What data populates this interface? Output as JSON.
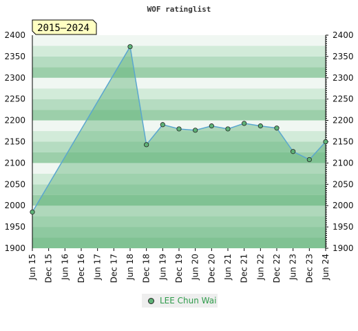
{
  "chart_data": {
    "type": "area",
    "title": "WOF ratinglist",
    "range_label": "2015–2024",
    "xlabel": "",
    "ylabel": "",
    "ylim": [
      1900,
      2400
    ],
    "yticks": [
      1900,
      1950,
      2000,
      2050,
      2100,
      2150,
      2200,
      2250,
      2300,
      2350,
      2400
    ],
    "x_tick_labels": [
      "Jun 15",
      "Dec 15",
      "Jun 16",
      "Dec 16",
      "Jun 17",
      "Dec 17",
      "Jun 18",
      "Dec 18",
      "Jun 19",
      "Dec 19",
      "Jun 20",
      "Dec 20",
      "Jun 21",
      "Dec 21",
      "Jun 22",
      "Dec 22",
      "Jun 23",
      "Dec 23",
      "Jun 24"
    ],
    "grid": true,
    "legend_position": "bottom-center",
    "series": [
      {
        "name": "LEE Chun Wai",
        "color": "#5fb277",
        "points": [
          {
            "x": "Jun 15",
            "y": 1985
          },
          {
            "x": "Jun 18",
            "y": 2373
          },
          {
            "x": "Dec 18",
            "y": 2143
          },
          {
            "x": "Jun 19",
            "y": 2190
          },
          {
            "x": "Dec 19",
            "y": 2180
          },
          {
            "x": "Jun 20",
            "y": 2177
          },
          {
            "x": "Dec 20",
            "y": 2187
          },
          {
            "x": "Jun 21",
            "y": 2180
          },
          {
            "x": "Dec 21",
            "y": 2193
          },
          {
            "x": "Jun 22",
            "y": 2187
          },
          {
            "x": "Dec 22",
            "y": 2182
          },
          {
            "x": "Jun 23",
            "y": 2127
          },
          {
            "x": "Dec 23",
            "y": 2108
          },
          {
            "x": "Jun 24",
            "y": 2150
          }
        ]
      }
    ]
  },
  "colors": {
    "band_light": "#f0f7f2",
    "band_mid": "#d2ebd9",
    "band_mid2": "#b5dcc1",
    "band_dark": "#9ccfaa",
    "area_fill": "#5fb277",
    "line": "#5aa6cf",
    "marker": "#5fb277",
    "badge_fill": "#ffffc2",
    "legend_text": "#2e9b4a"
  }
}
